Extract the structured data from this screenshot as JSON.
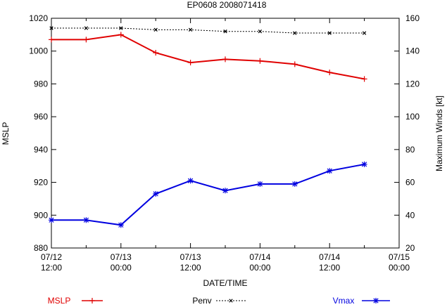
{
  "chart_data": {
    "type": "line",
    "title": "EP0608 2008071418",
    "xlabel": "DATE/TIME",
    "ylabel_left": "MSLP",
    "ylabel_right": "Maximum Winds [kt]",
    "x_ticks": [
      {
        "line1": "07/12",
        "line2": "12:00"
      },
      {
        "line1": "07/13",
        "line2": "00:00"
      },
      {
        "line1": "07/13",
        "line2": "12:00"
      },
      {
        "line1": "07/14",
        "line2": "00:00"
      },
      {
        "line1": "07/14",
        "line2": "12:00"
      },
      {
        "line1": "07/15",
        "line2": "00:00"
      }
    ],
    "x_hours_range": [
      0,
      60
    ],
    "y_left": {
      "range": [
        880,
        1020
      ],
      "ticks": [
        880,
        900,
        920,
        940,
        960,
        980,
        1000,
        1020
      ]
    },
    "y_right": {
      "range": [
        20,
        160
      ],
      "ticks": [
        20,
        40,
        60,
        80,
        100,
        120,
        140,
        160
      ]
    },
    "x_hours": [
      0,
      6,
      12,
      18,
      24,
      30,
      36,
      42,
      48,
      54
    ],
    "series": [
      {
        "name": "MSLP",
        "axis": "left",
        "color": "#e00000",
        "marker": "plus",
        "values": [
          1007,
          1007,
          1010,
          999,
          993,
          995,
          994,
          992,
          987,
          983
        ]
      },
      {
        "name": "Penv",
        "axis": "left",
        "color": "#000000",
        "marker": "x",
        "dashed": true,
        "values": [
          1014,
          1014,
          1014,
          1013,
          1013,
          1012,
          1012,
          1011,
          1011,
          1011
        ]
      },
      {
        "name": "Vmax",
        "axis": "right",
        "color": "#0000e0",
        "marker": "star",
        "values": [
          37,
          37,
          34,
          53,
          61,
          55,
          59,
          59,
          67,
          71
        ]
      }
    ],
    "grid": false,
    "legend_position": "bottom"
  }
}
